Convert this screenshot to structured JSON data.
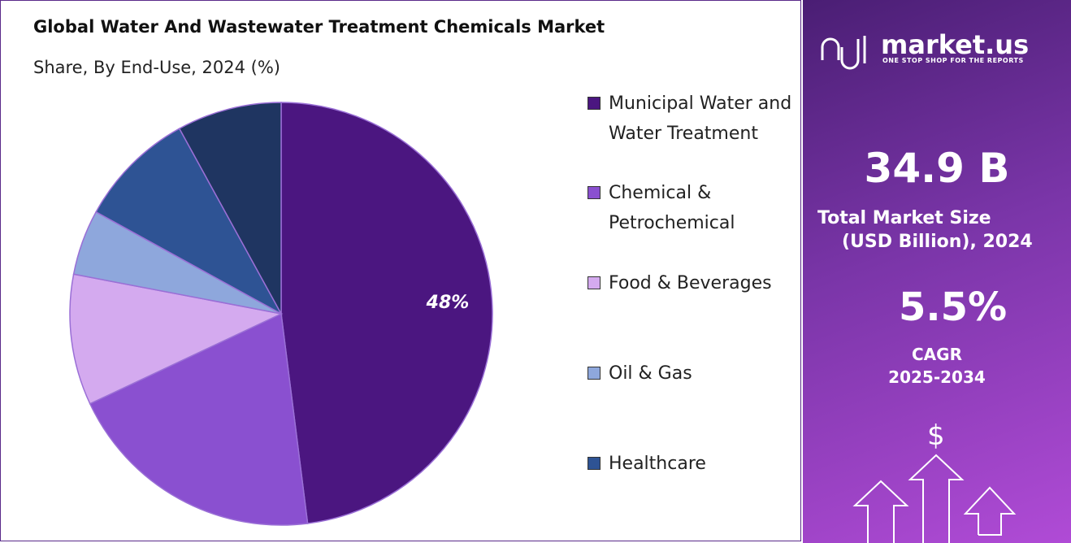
{
  "chart_data": {
    "type": "pie",
    "title": "Global Water And Wastewater Treatment Chemicals Market",
    "subtitle": "Share, By End-Use, 2024 (%)",
    "categories": [
      "Municipal Water and Water Treatment",
      "Chemical & Petrochemical",
      "Food & Beverages",
      "Oil & Gas",
      "Healthcare",
      null
    ],
    "values": [
      48,
      20,
      10,
      5,
      9,
      8
    ],
    "value_labels": [
      "48%",
      null,
      null,
      null,
      null,
      null
    ],
    "colors": [
      "#4b1680",
      "#8a50d0",
      "#d4aaef",
      "#8ea7dc",
      "#2e5394",
      "#1f3561"
    ]
  },
  "panel": {
    "brand": "market.us",
    "tagline": "ONE STOP SHOP FOR THE REPORTS",
    "market_size": "34.9 B",
    "market_size_label_1": "Total Market Size",
    "market_size_label_2": "(USD Billion), 2024",
    "cagr": "5.5%",
    "cagr_label": "CAGR",
    "cagr_period": "2025-2034",
    "currency_symbol": "$"
  }
}
